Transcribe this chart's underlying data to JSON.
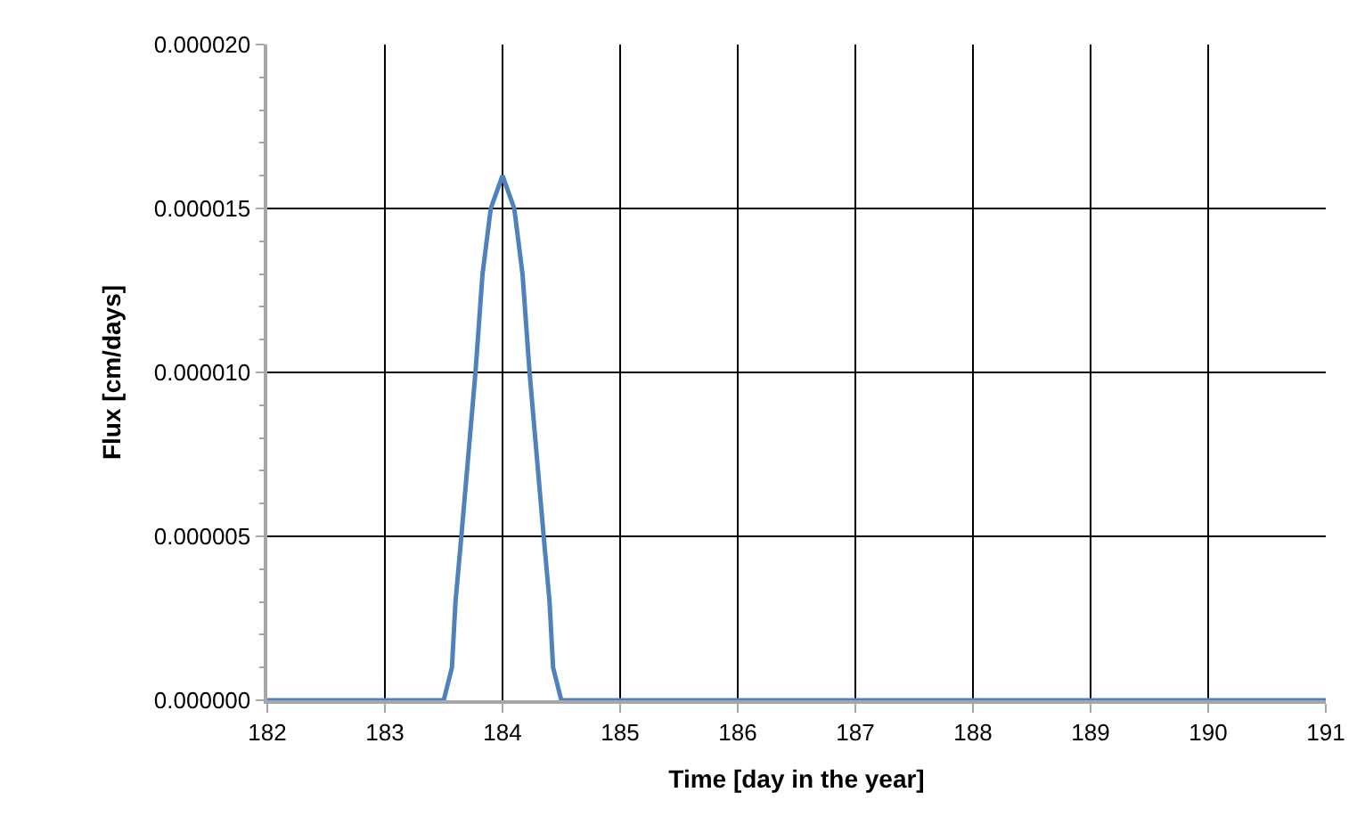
{
  "chart_data": {
    "type": "line",
    "xlabel": "Time [day in the year]",
    "ylabel": "Flux [cm/days]",
    "x": [
      182,
      183,
      183.5,
      183.57,
      183.6,
      183.65,
      183.77,
      183.83,
      183.9,
      184,
      184.1,
      184.17,
      184.23,
      184.35,
      184.4,
      184.43,
      184.5,
      185,
      186,
      187,
      188,
      189,
      190,
      191
    ],
    "series": [
      {
        "color": "#4f81bd",
        "values": [
          0,
          0,
          0,
          1e-06,
          3e-06,
          5e-06,
          1e-05,
          1.3e-05,
          1.5e-05,
          1.6e-05,
          1.5e-05,
          1.3e-05,
          1e-05,
          5e-06,
          3e-06,
          1e-06,
          0,
          0,
          0,
          0,
          0,
          0,
          0,
          0
        ]
      }
    ],
    "xlim": [
      182,
      191
    ],
    "xticks": [
      182,
      183,
      184,
      185,
      186,
      187,
      188,
      189,
      190,
      191
    ],
    "ylim": [
      0,
      2e-05
    ],
    "yticks": [
      {
        "value": 0,
        "label": "0.000000"
      },
      {
        "value": 5e-06,
        "label": "0.000005"
      },
      {
        "value": 1e-05,
        "label": "0.000010"
      },
      {
        "value": 1.5e-05,
        "label": "0.000015"
      },
      {
        "value": 2e-05,
        "label": "0.000020"
      }
    ],
    "grid": true,
    "marker": "none",
    "line_style": "solid"
  }
}
